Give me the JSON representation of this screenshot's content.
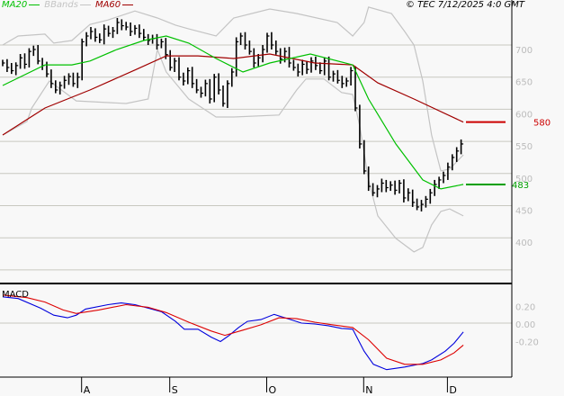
{
  "header": {
    "copyright": "© TEC 7/12/2025 4:0 GMT",
    "legend": [
      {
        "label": "MA20",
        "color": "#00c000"
      },
      {
        "label": "BBands",
        "color": "#c4c4c4"
      },
      {
        "label": "MA60",
        "color": "#a00000"
      }
    ]
  },
  "chart_data": [
    {
      "type": "ohlc-bar",
      "x_unit": "trading day index",
      "month_ticks": [
        {
          "label": "A",
          "x": 18
        },
        {
          "label": "S",
          "x": 38
        },
        {
          "label": "O",
          "x": 60
        },
        {
          "label": "N",
          "x": 82
        },
        {
          "label": "D",
          "x": 101
        }
      ],
      "yticks": [
        700,
        650,
        600,
        550,
        500,
        450,
        400
      ],
      "ylim": [
        350,
        770
      ],
      "grid": true,
      "closes": [
        672,
        665,
        660,
        668,
        680,
        670,
        690,
        693,
        675,
        668,
        655,
        640,
        630,
        637,
        645,
        651,
        640,
        650,
        705,
        714,
        721,
        712,
        708,
        725,
        718,
        722,
        735,
        730,
        728,
        721,
        726,
        718,
        712,
        707,
        710,
        700,
        705,
        685,
        665,
        675,
        650,
        644,
        660,
        640,
        630,
        625,
        640,
        616,
        650,
        630,
        609,
        640,
        658,
        705,
        714,
        700,
        690,
        672,
        680,
        693,
        714,
        700,
        690,
        678,
        690,
        672,
        665,
        658,
        670,
        662,
        675,
        668,
        660,
        675,
        650,
        655,
        645,
        640,
        644,
        660,
        602,
        546,
        504,
        480,
        470,
        476,
        485,
        478,
        482,
        474,
        485,
        462,
        470,
        455,
        448,
        452,
        460,
        470,
        483,
        490,
        497,
        510,
        525,
        535,
        546
      ],
      "ma20": [
        [
          0,
          637
        ],
        [
          9.6,
          669
        ],
        [
          15.7,
          669
        ],
        [
          19.8,
          675
        ],
        [
          25.9,
          693
        ],
        [
          32,
          707
        ],
        [
          37.1,
          714
        ],
        [
          42.2,
          703
        ],
        [
          48.4,
          679
        ],
        [
          54.5,
          658
        ],
        [
          60.6,
          672
        ],
        [
          69.8,
          686
        ],
        [
          79.4,
          669
        ],
        [
          83,
          616
        ],
        [
          89.2,
          546
        ],
        [
          95.3,
          490
        ],
        [
          99.4,
          476
        ],
        [
          104.5,
          483
        ]
      ],
      "ma60": [
        [
          0,
          560
        ],
        [
          9.6,
          602
        ],
        [
          19.8,
          630
        ],
        [
          30,
          661
        ],
        [
          37.1,
          683
        ],
        [
          44.3,
          683
        ],
        [
          52.4,
          679
        ],
        [
          60.6,
          686
        ],
        [
          70.8,
          672
        ],
        [
          79.4,
          669
        ],
        [
          85.1,
          641
        ],
        [
          93.3,
          616
        ],
        [
          104.5,
          580
        ]
      ],
      "bband_upper": [
        [
          0,
          700
        ],
        [
          3.5,
          714
        ],
        [
          9.6,
          717
        ],
        [
          11.6,
          703
        ],
        [
          15.7,
          707
        ],
        [
          19.8,
          732
        ],
        [
          23.9,
          739
        ],
        [
          30,
          753
        ],
        [
          35.1,
          742
        ],
        [
          39.2,
          731
        ],
        [
          42.2,
          725
        ],
        [
          48.4,
          714
        ],
        [
          52.4,
          742
        ],
        [
          60.6,
          756
        ],
        [
          66.7,
          749
        ],
        [
          75.9,
          735
        ],
        [
          79.4,
          714
        ],
        [
          82,
          735
        ],
        [
          83,
          759
        ],
        [
          88.2,
          749
        ],
        [
          91.2,
          721
        ],
        [
          93.3,
          700
        ],
        [
          95.3,
          644
        ],
        [
          97.3,
          560
        ],
        [
          99.4,
          504
        ],
        [
          101.4,
          507
        ],
        [
          104.5,
          529
        ]
      ],
      "bband_lower": [
        [
          0,
          560
        ],
        [
          5.5,
          581
        ],
        [
          6.6,
          602
        ],
        [
          10.6,
          644
        ],
        [
          16.7,
          613
        ],
        [
          28,
          609
        ],
        [
          33,
          616
        ],
        [
          35.1,
          693
        ],
        [
          37.1,
          658
        ],
        [
          42.2,
          616
        ],
        [
          48.4,
          588
        ],
        [
          52.4,
          588
        ],
        [
          62.7,
          591
        ],
        [
          66.7,
          630
        ],
        [
          68.8,
          647
        ],
        [
          72.9,
          647
        ],
        [
          76.9,
          626
        ],
        [
          79.4,
          623
        ],
        [
          81,
          574
        ],
        [
          83,
          490
        ],
        [
          85.1,
          434
        ],
        [
          89.2,
          399
        ],
        [
          93.3,
          378
        ],
        [
          95.3,
          385
        ],
        [
          97.3,
          420
        ],
        [
          99.4,
          441
        ],
        [
          101.4,
          445
        ],
        [
          104.5,
          434
        ]
      ],
      "last_labels": [
        {
          "label": "580",
          "value": 580,
          "color": "#cc0000"
        },
        {
          "label": "483",
          "value": 483,
          "color": "#00a000"
        }
      ]
    },
    {
      "type": "line",
      "title": "MACD",
      "yticks": [
        {
          "value": 0.2,
          "label": "0.20"
        },
        {
          "value": 0,
          "label": "0.00"
        },
        {
          "value": -0.2,
          "label": "-0.20"
        }
      ],
      "series": [
        {
          "color": "#0000dd",
          "points": [
            [
              0,
              0.3
            ],
            [
              3.5,
              0.28
            ],
            [
              8.6,
              0.17
            ],
            [
              11.6,
              0.09
            ],
            [
              14.7,
              0.06
            ],
            [
              16.7,
              0.09
            ],
            [
              18.8,
              0.16
            ],
            [
              23.9,
              0.21
            ],
            [
              26.9,
              0.23
            ],
            [
              30,
              0.21
            ],
            [
              33,
              0.17
            ],
            [
              36,
              0.13
            ],
            [
              39.2,
              0.02
            ],
            [
              41.2,
              -0.07
            ],
            [
              44.3,
              -0.07
            ],
            [
              47.3,
              -0.16
            ],
            [
              49.4,
              -0.21
            ],
            [
              51.4,
              -0.14
            ],
            [
              53.5,
              -0.05
            ],
            [
              55.5,
              0.02
            ],
            [
              58.6,
              0.04
            ],
            [
              61.6,
              0.1
            ],
            [
              64.7,
              0.05
            ],
            [
              67.8,
              0
            ],
            [
              70.8,
              -0.01
            ],
            [
              73.9,
              -0.03
            ],
            [
              76.9,
              -0.06
            ],
            [
              79.4,
              -0.07
            ],
            [
              82,
              -0.32
            ],
            [
              84.1,
              -0.47
            ],
            [
              87.1,
              -0.53
            ],
            [
              91.2,
              -0.5
            ],
            [
              95.3,
              -0.46
            ],
            [
              97.3,
              -0.42
            ],
            [
              100.4,
              -0.32
            ],
            [
              102.4,
              -0.23
            ],
            [
              104.5,
              -0.1
            ]
          ]
        },
        {
          "color": "#dd0000",
          "points": [
            [
              0,
              0.32
            ],
            [
              5.5,
              0.29
            ],
            [
              9.6,
              0.24
            ],
            [
              13.7,
              0.15
            ],
            [
              16.7,
              0.11
            ],
            [
              21.8,
              0.15
            ],
            [
              28,
              0.21
            ],
            [
              33,
              0.18
            ],
            [
              37.1,
              0.12
            ],
            [
              42.2,
              0.01
            ],
            [
              47.3,
              -0.09
            ],
            [
              50.4,
              -0.14
            ],
            [
              54.5,
              -0.08
            ],
            [
              58.6,
              -0.02
            ],
            [
              62.7,
              0.06
            ],
            [
              66.7,
              0.05
            ],
            [
              70.8,
              0.01
            ],
            [
              74.9,
              -0.02
            ],
            [
              79.4,
              -0.05
            ],
            [
              83,
              -0.19
            ],
            [
              87.1,
              -0.4
            ],
            [
              91.2,
              -0.47
            ],
            [
              95.3,
              -0.47
            ],
            [
              99.4,
              -0.42
            ],
            [
              102.4,
              -0.34
            ],
            [
              104.5,
              -0.25
            ]
          ]
        }
      ]
    }
  ]
}
